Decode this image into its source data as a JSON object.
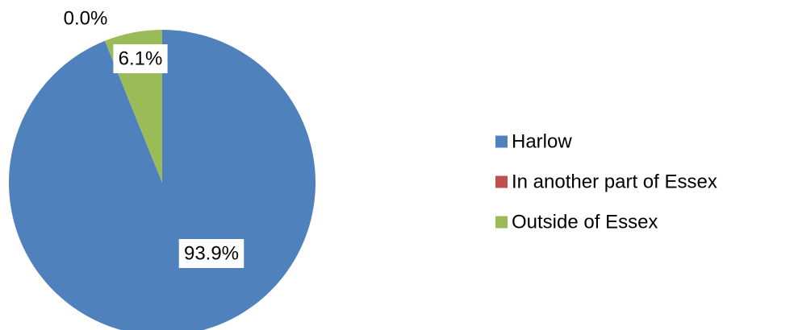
{
  "chart_data": {
    "type": "pie",
    "title": "",
    "slices": [
      {
        "label": "Harlow",
        "value": 93.9,
        "display": "93.9%",
        "color": "#4F81BD"
      },
      {
        "label": "In another part of Essex",
        "value": 0.0,
        "display": "0.0%",
        "color": "#C0504D"
      },
      {
        "label": "Outside of Essex",
        "value": 6.1,
        "display": "6.1%",
        "color": "#9BBB59"
      }
    ],
    "legend_position": "right"
  }
}
